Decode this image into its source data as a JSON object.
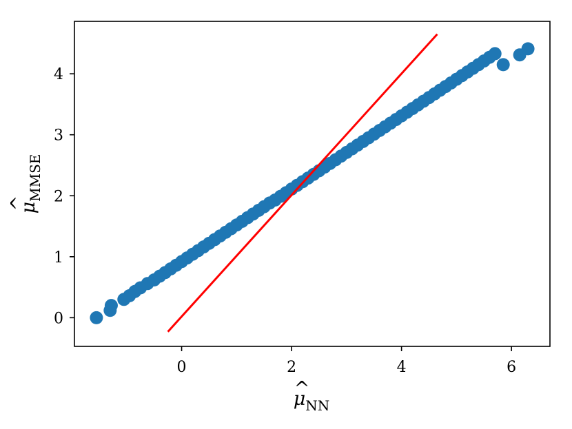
{
  "chart_data": {
    "type": "scatter",
    "title": "",
    "xlabel": {
      "symbol": "μ",
      "subscript": "NN",
      "hat": "^"
    },
    "ylabel": {
      "symbol": "μ",
      "subscript": "MMSE",
      "hat": "^"
    },
    "xlim": [
      -1.95,
      6.7
    ],
    "ylim": [
      -0.47,
      4.86
    ],
    "xticks": [
      0,
      2,
      4,
      6
    ],
    "yticks": [
      0,
      1,
      2,
      3,
      4
    ],
    "grid": false,
    "series": [
      {
        "type": "scatter",
        "color": "#1f77b4",
        "x": [
          -1.55,
          -1.3,
          -1.28,
          -1.05,
          -0.95,
          -0.85,
          -0.75,
          -0.62,
          -0.5,
          -0.4,
          -0.3,
          -0.2,
          -0.1,
          0.0,
          0.1,
          0.2,
          0.3,
          0.4,
          0.5,
          0.6,
          0.7,
          0.8,
          0.9,
          1.0,
          1.1,
          1.2,
          1.3,
          1.4,
          1.5,
          1.6,
          1.7,
          1.8,
          1.9,
          2.0,
          2.1,
          2.2,
          2.3,
          2.4,
          2.5,
          2.6,
          2.7,
          2.8,
          2.9,
          3.0,
          3.1,
          3.2,
          3.3,
          3.4,
          3.5,
          3.6,
          3.7,
          3.8,
          3.9,
          4.0,
          4.1,
          4.2,
          4.3,
          4.4,
          4.5,
          4.6,
          4.7,
          4.8,
          4.9,
          5.0,
          5.1,
          5.2,
          5.3,
          5.4,
          5.5,
          5.6,
          5.7,
          5.85,
          6.15,
          6.3
        ],
        "y": [
          0.0,
          0.12,
          0.2,
          0.3,
          0.36,
          0.43,
          0.49,
          0.56,
          0.62,
          0.68,
          0.74,
          0.8,
          0.86,
          0.92,
          0.98,
          1.04,
          1.1,
          1.16,
          1.22,
          1.28,
          1.34,
          1.4,
          1.46,
          1.52,
          1.58,
          1.64,
          1.7,
          1.76,
          1.82,
          1.88,
          1.93,
          1.99,
          2.05,
          2.11,
          2.17,
          2.23,
          2.29,
          2.35,
          2.41,
          2.47,
          2.53,
          2.59,
          2.65,
          2.71,
          2.77,
          2.83,
          2.89,
          2.95,
          3.01,
          3.07,
          3.13,
          3.19,
          3.25,
          3.31,
          3.37,
          3.43,
          3.49,
          3.55,
          3.61,
          3.67,
          3.73,
          3.79,
          3.85,
          3.91,
          3.97,
          4.03,
          4.09,
          4.15,
          4.21,
          4.27,
          4.33,
          4.15,
          4.31,
          4.41
        ]
      },
      {
        "type": "line",
        "color": "#ff0000",
        "x": [
          -0.25,
          4.65
        ],
        "y": [
          -0.23,
          4.65
        ]
      }
    ]
  }
}
